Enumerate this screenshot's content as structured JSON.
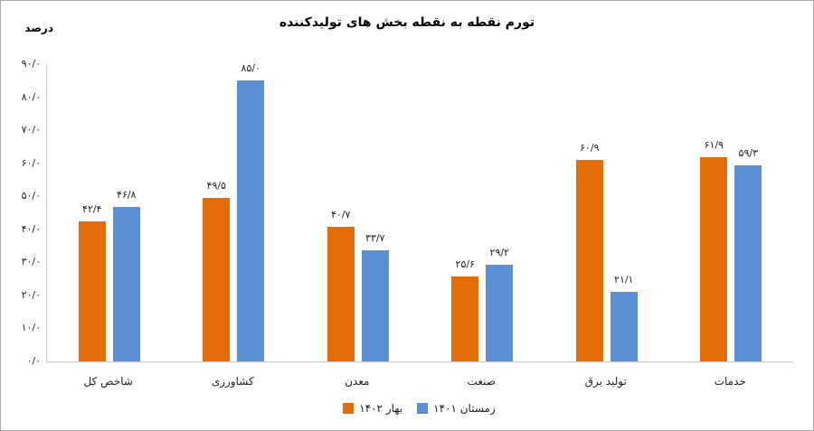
{
  "chart_data": {
    "type": "bar",
    "title": "تورم نقطه به نقطه بخش های تولیدکننده",
    "ylabel": "درصد",
    "xlabel": "",
    "direction": "rtl",
    "grid": false,
    "legend_position": "bottom",
    "ylim": [
      0,
      90
    ],
    "ytick_step": 10,
    "yticks": [
      {
        "value": 0,
        "label": "۰/۰"
      },
      {
        "value": 10,
        "label": "۱۰/۰"
      },
      {
        "value": 20,
        "label": "۲۰/۰"
      },
      {
        "value": 30,
        "label": "۳۰/۰"
      },
      {
        "value": 40,
        "label": "۴۰/۰"
      },
      {
        "value": 50,
        "label": "۵۰/۰"
      },
      {
        "value": 60,
        "label": "۶۰/۰"
      },
      {
        "value": 70,
        "label": "۷۰/۰"
      },
      {
        "value": 80,
        "label": "۸۰/۰"
      },
      {
        "value": 90,
        "label": "۹۰/۰"
      }
    ],
    "categories": [
      "شاخص کل",
      "کشاورزی",
      "معدن",
      "صنعت",
      "تولید برق",
      "خدمات"
    ],
    "series": [
      {
        "name": "بهار ۱۴۰۲",
        "color": "#E36C09",
        "values": [
          42.4,
          49.5,
          40.7,
          25.6,
          60.9,
          61.9
        ],
        "labels": [
          "۴۲/۴",
          "۴۹/۵",
          "۴۰/۷",
          "۲۵/۶",
          "۶۰/۹",
          "۶۱/۹"
        ]
      },
      {
        "name": "زمستان ۱۴۰۱",
        "color": "#5B8FD4",
        "values": [
          46.8,
          85.0,
          33.7,
          29.2,
          21.1,
          59.3
        ],
        "labels": [
          "۴۶/۸",
          "۸۵/۰",
          "۳۳/۷",
          "۲۹/۲",
          "۲۱/۱",
          "۵۹/۳"
        ]
      }
    ],
    "colors": {
      "axis": "#c9c9c9",
      "text": "#1f1f1f",
      "frame_border": "#ababab"
    }
  }
}
